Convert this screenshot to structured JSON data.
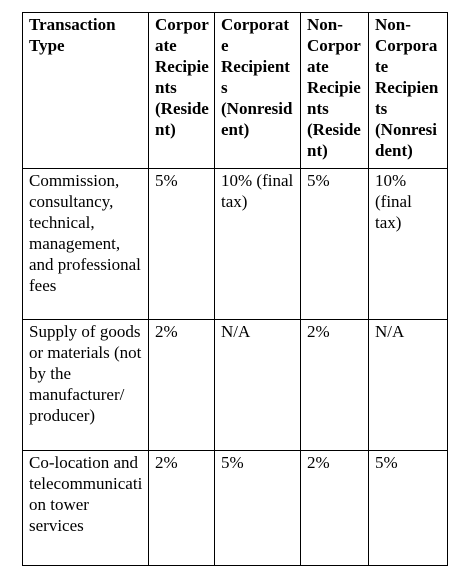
{
  "table": {
    "header": [
      "Transaction Type",
      "Corporate Recipients (Resident)",
      "Corporate Recipients (Nonresident)",
      "Non-Corporate Recipients (Resident)",
      "Non-Corporate Recipients (Nonresident)"
    ],
    "rows": [
      [
        "Commission, consultancy, technical, management, and professional fees",
        "5%",
        "10% (final tax)",
        "5%",
        "10% (final tax)"
      ],
      [
        "Supply of goods or materials (not by the manufacturer/ producer)",
        "2%",
        "N/A",
        "2%",
        "N/A"
      ],
      [
        "Co-location and telecommunication tower services",
        "2%",
        "5%",
        "2%",
        "5%"
      ]
    ]
  }
}
